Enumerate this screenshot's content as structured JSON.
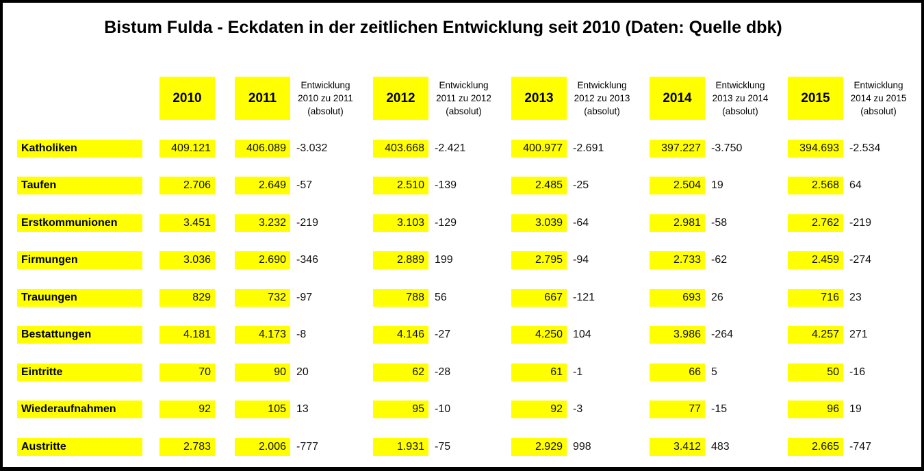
{
  "title": "Bistum Fulda - Eckdaten in der zeitlichen Entwicklung seit 2010 (Daten: Quelle dbk)",
  "colors": {
    "highlight": "#ffff00",
    "border": "#000000",
    "background": "#ffffff",
    "text": "#000000"
  },
  "columns": {
    "years": [
      "2010",
      "2011",
      "2012",
      "2013",
      "2014",
      "2015"
    ],
    "delta_headers": [
      {
        "lines": [
          "Entwicklung",
          "2010 zu 2011",
          "(absolut)"
        ]
      },
      {
        "lines": [
          "Entwicklung",
          "2011 zu 2012",
          "(absolut)"
        ]
      },
      {
        "lines": [
          "Entwicklung",
          "2012 zu 2013",
          "(absolut)"
        ]
      },
      {
        "lines": [
          "Entwicklung",
          "2013 zu 2014",
          "(absolut)"
        ]
      },
      {
        "lines": [
          "Entwicklung",
          "2014 zu 2015",
          "(absolut)"
        ]
      }
    ]
  },
  "rows": [
    {
      "label": "Katholiken",
      "values": [
        "409.121",
        "406.089",
        "403.668",
        "400.977",
        "397.227",
        "394.693"
      ],
      "deltas": [
        "-3.032",
        "-2.421",
        "-2.691",
        "-3.750",
        "-2.534"
      ]
    },
    {
      "label": "Taufen",
      "values": [
        "2.706",
        "2.649",
        "2.510",
        "2.485",
        "2.504",
        "2.568"
      ],
      "deltas": [
        "-57",
        "-139",
        "-25",
        "19",
        "64"
      ]
    },
    {
      "label": "Erstkommunionen",
      "values": [
        "3.451",
        "3.232",
        "3.103",
        "3.039",
        "2.981",
        "2.762"
      ],
      "deltas": [
        "-219",
        "-129",
        "-64",
        "-58",
        "-219"
      ]
    },
    {
      "label": "Firmungen",
      "values": [
        "3.036",
        "2.690",
        "2.889",
        "2.795",
        "2.733",
        "2.459"
      ],
      "deltas": [
        "-346",
        "199",
        "-94",
        "-62",
        "-274"
      ]
    },
    {
      "label": "Trauungen",
      "values": [
        "829",
        "732",
        "788",
        "667",
        "693",
        "716"
      ],
      "deltas": [
        "-97",
        "56",
        "-121",
        "26",
        "23"
      ]
    },
    {
      "label": "Bestattungen",
      "values": [
        "4.181",
        "4.173",
        "4.146",
        "4.250",
        "3.986",
        "4.257"
      ],
      "deltas": [
        "-8",
        "-27",
        "104",
        "-264",
        "271"
      ]
    },
    {
      "label": "Eintritte",
      "values": [
        "70",
        "90",
        "62",
        "61",
        "66",
        "50"
      ],
      "deltas": [
        "20",
        "-28",
        "-1",
        "5",
        "-16"
      ]
    },
    {
      "label": "Wiederaufnahmen",
      "values": [
        "92",
        "105",
        "95",
        "92",
        "77",
        "96"
      ],
      "deltas": [
        "13",
        "-10",
        "-3",
        "-15",
        "19"
      ]
    },
    {
      "label": "Austritte",
      "values": [
        "2.783",
        "2.006",
        "1.931",
        "2.929",
        "3.412",
        "2.665"
      ],
      "deltas": [
        "-777",
        "-75",
        "998",
        "483",
        "-747"
      ]
    }
  ]
}
